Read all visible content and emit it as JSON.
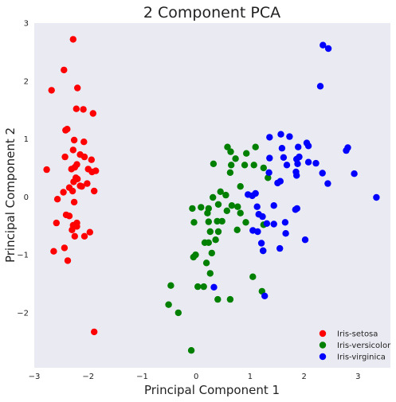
{
  "colors": {
    "plot_background": "#eaeaf2",
    "Iris-setosa": "#ff0000",
    "Iris-versicolor": "#008000",
    "Iris-virginica": "#0000ff"
  },
  "chart_data": {
    "type": "scatter",
    "title": "2 Component PCA",
    "xlabel": "Principal Component 1",
    "ylabel": "Principal Component 2",
    "xlim": [
      -3.0,
      3.6
    ],
    "ylim": [
      -2.95,
      3.0
    ],
    "xticks": [
      -3,
      -2,
      -1,
      0,
      1,
      2,
      3
    ],
    "yticks": [
      -2,
      -1,
      0,
      1,
      2,
      3
    ],
    "grid": false,
    "legend_position": "lower-right",
    "series": [
      {
        "name": "Iris-setosa",
        "color": "#ff0000",
        "points": [
          [
            -2.28,
            2.72
          ],
          [
            -2.45,
            2.19
          ],
          [
            -2.2,
            1.88
          ],
          [
            -2.68,
            1.84
          ],
          [
            -2.22,
            1.52
          ],
          [
            -2.09,
            1.51
          ],
          [
            -1.91,
            1.44
          ],
          [
            -2.39,
            1.17
          ],
          [
            -2.42,
            1.15
          ],
          [
            -2.26,
            0.98
          ],
          [
            -2.08,
            0.95
          ],
          [
            -2.28,
            0.81
          ],
          [
            -2.15,
            0.73
          ],
          [
            -2.43,
            0.69
          ],
          [
            -2.07,
            0.69
          ],
          [
            -1.94,
            0.64
          ],
          [
            -2.21,
            0.56
          ],
          [
            -2.25,
            0.51
          ],
          [
            -2.31,
            0.48
          ],
          [
            -2.0,
            0.48
          ],
          [
            -1.86,
            0.45
          ],
          [
            -1.93,
            0.43
          ],
          [
            -2.77,
            0.47
          ],
          [
            -2.23,
            0.33
          ],
          [
            -2.2,
            0.31
          ],
          [
            -2.27,
            0.26
          ],
          [
            -2.02,
            0.23
          ],
          [
            -2.15,
            0.19
          ],
          [
            -2.12,
            0.18
          ],
          [
            -2.35,
            0.16
          ],
          [
            -2.29,
            0.1
          ],
          [
            -1.89,
            0.1
          ],
          [
            -2.46,
            0.08
          ],
          [
            -2.57,
            -0.04
          ],
          [
            -2.26,
            -0.09
          ],
          [
            -2.41,
            -0.31
          ],
          [
            -2.35,
            -0.33
          ],
          [
            -2.59,
            -0.45
          ],
          [
            -2.21,
            -0.45
          ],
          [
            -2.28,
            -0.49
          ],
          [
            -2.21,
            -0.51
          ],
          [
            -2.3,
            -0.57
          ],
          [
            -1.97,
            -0.61
          ],
          [
            -2.25,
            -0.68
          ],
          [
            -2.07,
            -0.68
          ],
          [
            -2.44,
            -0.88
          ],
          [
            -2.64,
            -0.94
          ],
          [
            -2.38,
            -1.1
          ],
          [
            -1.89,
            -2.33
          ]
        ]
      },
      {
        "name": "Iris-versicolor",
        "color": "#008000",
        "points": [
          [
            0.58,
            0.86
          ],
          [
            1.1,
            0.86
          ],
          [
            0.64,
            0.78
          ],
          [
            0.93,
            0.75
          ],
          [
            0.73,
            0.66
          ],
          [
            0.32,
            0.57
          ],
          [
            0.65,
            0.55
          ],
          [
            0.9,
            0.55
          ],
          [
            1.07,
            0.55
          ],
          [
            0.63,
            0.42
          ],
          [
            1.25,
            0.5
          ],
          [
            1.33,
            0.33
          ],
          [
            0.82,
            0.18
          ],
          [
            0.45,
            0.09
          ],
          [
            0.55,
            0.03
          ],
          [
            0.31,
            -0.01
          ],
          [
            0.09,
            -0.18
          ],
          [
            0.41,
            -0.13
          ],
          [
            0.66,
            -0.15
          ],
          [
            0.77,
            -0.17
          ],
          [
            0.23,
            -0.2
          ],
          [
            -0.07,
            -0.2
          ],
          [
            0.57,
            -0.24
          ],
          [
            0.21,
            -0.28
          ],
          [
            0.82,
            -0.28
          ],
          [
            0.39,
            -0.42
          ],
          [
            0.23,
            -0.43
          ],
          [
            0.48,
            -0.42
          ],
          [
            -0.04,
            -0.44
          ],
          [
            0.92,
            -0.44
          ],
          [
            1.25,
            -0.48
          ],
          [
            0.76,
            -0.57
          ],
          [
            0.41,
            -0.6
          ],
          [
            0.26,
            -0.6
          ],
          [
            0.36,
            -0.74
          ],
          [
            0.16,
            -0.79
          ],
          [
            0.23,
            -0.79
          ],
          [
            1.24,
            -0.93
          ],
          [
            0.29,
            -0.97
          ],
          [
            -0.01,
            -1.0
          ],
          [
            -0.05,
            -1.04
          ],
          [
            0.19,
            -1.14
          ],
          [
            0.26,
            -1.32
          ],
          [
            1.05,
            -1.38
          ],
          [
            0.03,
            -1.55
          ],
          [
            0.14,
            -1.55
          ],
          [
            -0.47,
            -1.53
          ],
          [
            1.22,
            -1.63
          ],
          [
            0.4,
            -1.77
          ],
          [
            0.63,
            -1.77
          ],
          [
            -0.51,
            -1.86
          ],
          [
            -0.33,
            -2.0
          ],
          [
            -0.09,
            -2.65
          ]
        ]
      },
      {
        "name": "Iris-virginica",
        "color": "#0000ff",
        "points": [
          [
            2.35,
            2.62
          ],
          [
            2.45,
            2.56
          ],
          [
            2.3,
            1.91
          ],
          [
            1.57,
            1.08
          ],
          [
            1.73,
            1.04
          ],
          [
            1.36,
            1.03
          ],
          [
            2.05,
            0.93
          ],
          [
            2.08,
            0.88
          ],
          [
            1.89,
            0.86
          ],
          [
            1.59,
            0.84
          ],
          [
            2.81,
            0.85
          ],
          [
            2.78,
            0.8
          ],
          [
            1.36,
            0.67
          ],
          [
            1.62,
            0.68
          ],
          [
            1.91,
            0.69
          ],
          [
            1.86,
            0.65
          ],
          [
            2.08,
            0.6
          ],
          [
            2.22,
            0.58
          ],
          [
            1.88,
            0.57
          ],
          [
            1.68,
            0.55
          ],
          [
            1.35,
            0.42
          ],
          [
            1.85,
            0.43
          ],
          [
            1.86,
            0.37
          ],
          [
            2.34,
            0.41
          ],
          [
            2.93,
            0.4
          ],
          [
            1.56,
            0.27
          ],
          [
            1.51,
            0.24
          ],
          [
            2.44,
            0.23
          ],
          [
            1.1,
            0.06
          ],
          [
            1.04,
            0.02
          ],
          [
            0.96,
            0.04
          ],
          [
            3.34,
            -0.01
          ],
          [
            1.44,
            -0.15
          ],
          [
            1.13,
            -0.17
          ],
          [
            1.16,
            -0.3
          ],
          [
            1.23,
            -0.34
          ],
          [
            1.87,
            -0.2
          ],
          [
            1.84,
            -0.22
          ],
          [
            1.44,
            -0.47
          ],
          [
            1.31,
            -0.46
          ],
          [
            1.65,
            -0.44
          ],
          [
            1.05,
            -0.58
          ],
          [
            1.14,
            -0.6
          ],
          [
            1.66,
            -0.63
          ],
          [
            1.21,
            -0.8
          ],
          [
            2.02,
            -0.74
          ],
          [
            1.55,
            -0.89
          ],
          [
            1.24,
            -0.93
          ],
          [
            0.33,
            -1.56
          ],
          [
            1.27,
            -1.71
          ]
        ]
      }
    ]
  }
}
